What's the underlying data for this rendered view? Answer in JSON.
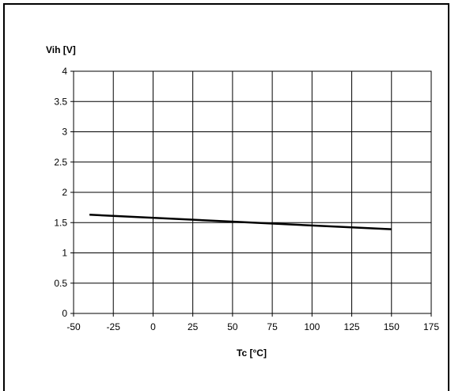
{
  "chart_data": {
    "type": "line",
    "title": "",
    "xlabel": "Tc [°C]",
    "ylabel": "Vih [V]",
    "xlim": [
      -50,
      175
    ],
    "ylim": [
      0,
      4
    ],
    "x_ticks": [
      "-50",
      "-25",
      "0",
      "25",
      "50",
      "75",
      "100",
      "125",
      "150",
      "175"
    ],
    "y_ticks": [
      "0",
      "0.5",
      "1",
      "1.5",
      "2",
      "2.5",
      "3",
      "3.5",
      "4"
    ],
    "grid": true,
    "legend": "none",
    "series": [
      {
        "x": [
          -40,
          150
        ],
        "y": [
          1.63,
          1.39
        ],
        "color": "#000000"
      }
    ]
  }
}
